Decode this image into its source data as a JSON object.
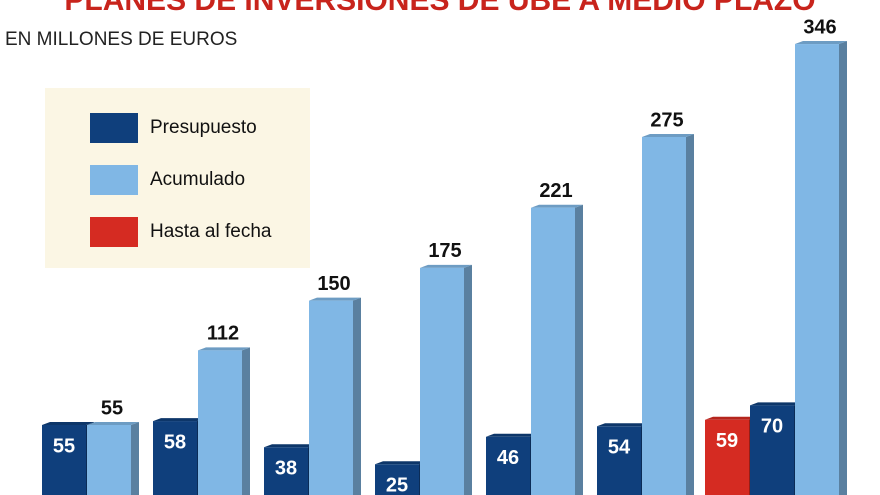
{
  "chart_data": {
    "type": "bar",
    "title": "PLANES DE INVERSIONES DE UBE A MEDIO PLAZO",
    "subtitle": "EN MILLONES DE EUROS",
    "categories": [
      null,
      null,
      null,
      null,
      null,
      null,
      null
    ],
    "series": [
      {
        "name": "Presupuesto",
        "color": "#0f3f7c",
        "values": [
          55,
          58,
          38,
          25,
          46,
          54,
          70
        ]
      },
      {
        "name": "Acumulado",
        "color": "#80b7e5",
        "values": [
          55,
          112,
          150,
          175,
          221,
          275,
          346
        ]
      },
      {
        "name": "Hasta al fecha",
        "color": "#d52b22",
        "values": [
          null,
          null,
          null,
          null,
          null,
          null,
          59
        ]
      }
    ],
    "ylim": [
      0,
      380
    ]
  }
}
